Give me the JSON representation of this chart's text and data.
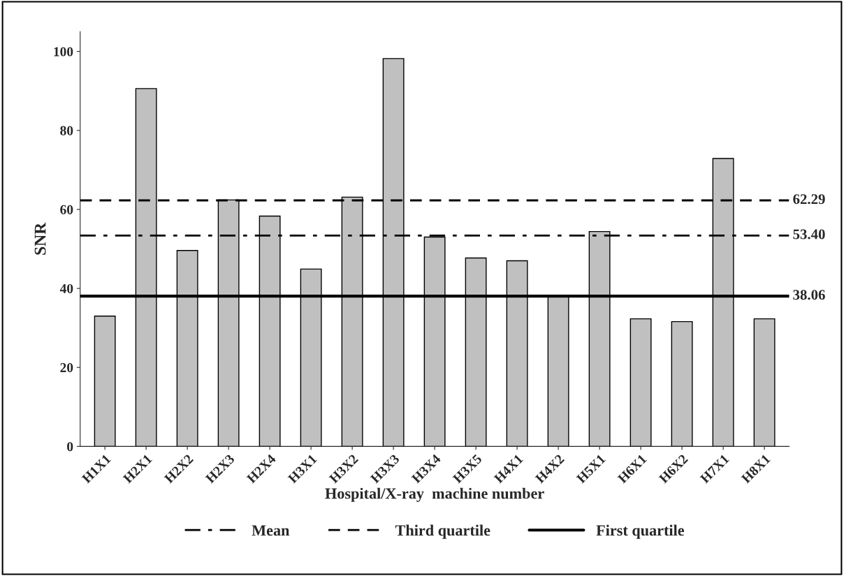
{
  "chart_data": {
    "type": "bar",
    "xlabel": "Hospital/X-ray  machine number",
    "ylabel": "SNR",
    "categories": [
      "H1X1",
      "H2X1",
      "H2X2",
      "H2X3",
      "H2X4",
      "H3X1",
      "H3X2",
      "H3X3",
      "H3X4",
      "H3X5",
      "H4X1",
      "H4X2",
      "H5X1",
      "H6X1",
      "H6X2",
      "H7X1",
      "H8X1"
    ],
    "values": [
      33.0,
      90.6,
      49.6,
      62.4,
      58.3,
      44.9,
      63.1,
      98.2,
      53.0,
      47.7,
      47.0,
      38.3,
      54.4,
      32.3,
      31.6,
      72.9,
      32.3
    ],
    "color": "#c0c0c0",
    "ylim": [
      0,
      105
    ],
    "yticks": [
      0,
      20,
      40,
      60,
      80,
      100
    ],
    "grid": false,
    "legend": "bottom",
    "ref_lines": [
      {
        "axis": "y",
        "value": 53.4,
        "label": "Mean",
        "color": "#000000",
        "line_style": "dashdot"
      },
      {
        "axis": "y",
        "value": 62.29,
        "label": "Third quartile",
        "color": "#000000",
        "line_style": "dashed"
      },
      {
        "axis": "y",
        "value": 38.06,
        "label": "First quartile",
        "color": "#000000",
        "line_style": "solid"
      }
    ],
    "annotations": [
      "53.40",
      "62.29",
      "38.06"
    ]
  }
}
